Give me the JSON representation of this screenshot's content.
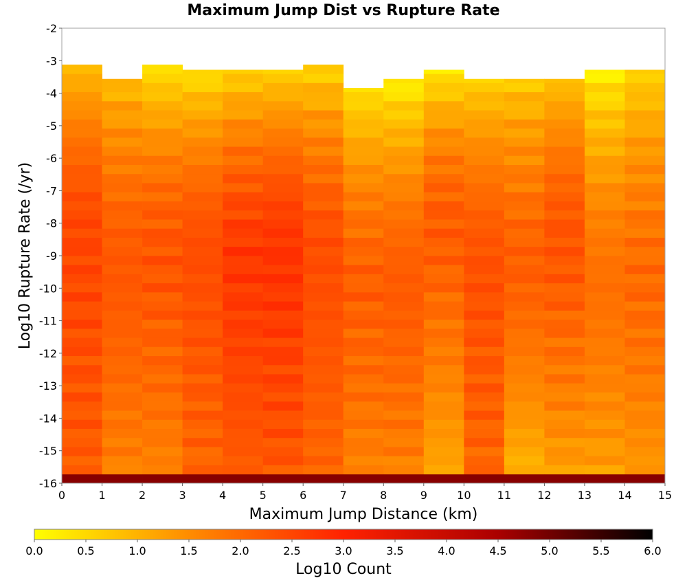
{
  "chart_data": {
    "type": "heatmap",
    "title": "Maximum Jump Dist vs Rupture Rate",
    "xlabel": "Maximum Jump Distance (km)",
    "ylabel": "Log10 Rupture Rate (/yr)",
    "xlim": [
      0,
      15
    ],
    "ylim": [
      -16,
      -2
    ],
    "x_ticks": [
      "0",
      "1",
      "2",
      "3",
      "4",
      "5",
      "6",
      "7",
      "8",
      "9",
      "10",
      "11",
      "12",
      "13",
      "14",
      "15"
    ],
    "y_ticks": [
      "-2",
      "-3",
      "-4",
      "-5",
      "-6",
      "-7",
      "-8",
      "-9",
      "-10",
      "-11",
      "-12",
      "-13",
      "-14",
      "-15",
      "-16"
    ],
    "x_bin_edges": [
      0,
      1,
      2,
      3,
      4,
      5,
      6,
      7,
      8,
      9,
      10,
      11,
      12,
      13,
      14,
      15
    ],
    "y_bin_width": 0.28,
    "y_bin_start": -16.0,
    "y_bins": 46,
    "value_units": "Log10 Count",
    "nan_color": "#ffffff",
    "column_top_y": [
      -2.68,
      -3.56,
      -3.0,
      -3.28,
      -3.28,
      -3.28,
      -3.0,
      -3.84,
      -3.56,
      -3.28,
      -3.56,
      -3.56,
      -3.56,
      -3.28,
      -3.28
    ],
    "column_bottom_value": [
      2.15,
      1.6,
      1.6,
      2.0,
      2.15,
      2.2,
      2.0,
      1.6,
      1.6,
      1.1,
      2.0,
      0.9,
      1.2,
      1.2,
      1.3
    ],
    "column_peak_y": [
      -8.5,
      -9.5,
      -9.0,
      -9.0,
      -9.2,
      -9.0,
      -9.0,
      -10.0,
      -10.0,
      -8.0,
      -9.5,
      -9.5,
      -8.5,
      -10.0,
      -10.0
    ],
    "column_peak_value": [
      2.5,
      2.25,
      2.3,
      2.4,
      2.7,
      2.75,
      2.4,
      2.15,
      2.2,
      2.2,
      2.35,
      2.15,
      2.3,
      1.9,
      2.0
    ],
    "column_top_value": [
      0.6,
      0.9,
      0.3,
      0.4,
      0.6,
      0.6,
      0.5,
      0.4,
      0.2,
      0.3,
      0.6,
      0.7,
      0.8,
      0.2,
      0.6
    ],
    "bottom_row_value": 4.8,
    "colorbar": {
      "label": "Log10 Count",
      "min": 0.0,
      "max": 6.0,
      "ticks": [
        "0.0",
        "0.5",
        "1.0",
        "1.5",
        "2.0",
        "2.5",
        "3.0",
        "3.5",
        "4.0",
        "4.5",
        "5.0",
        "5.5",
        "6.0"
      ],
      "colors": [
        "#ffff00",
        "#ff8c00",
        "#ff2200",
        "#aa0000",
        "#000000"
      ]
    }
  }
}
